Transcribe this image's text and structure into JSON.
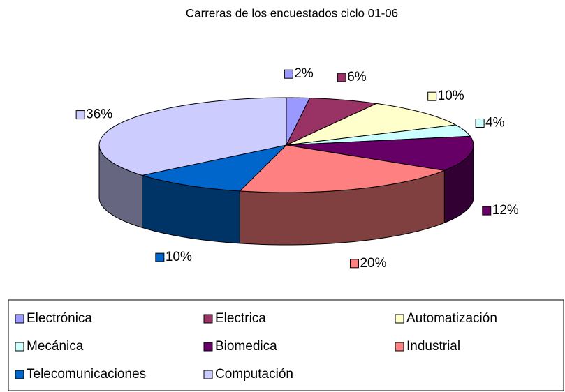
{
  "chart_data": {
    "type": "pie",
    "title": "Carreras de los encuestados ciclo 01-06",
    "categories": [
      "Electrónica",
      "Electrica",
      "Automatización",
      "Mecánica",
      "Biomedica",
      "Industrial",
      "Telecomunicaciones",
      "Computación"
    ],
    "values": [
      2,
      6,
      10,
      4,
      12,
      20,
      10,
      36
    ],
    "value_labels": [
      "2%",
      "6%",
      "10%",
      "4%",
      "12%",
      "20%",
      "10%",
      "36%"
    ],
    "colors": [
      "#9999ff",
      "#993366",
      "#ffffcc",
      "#ccffff",
      "#660066",
      "#ff8080",
      "#0066cc",
      "#ccccff"
    ],
    "legend": "bottom"
  }
}
